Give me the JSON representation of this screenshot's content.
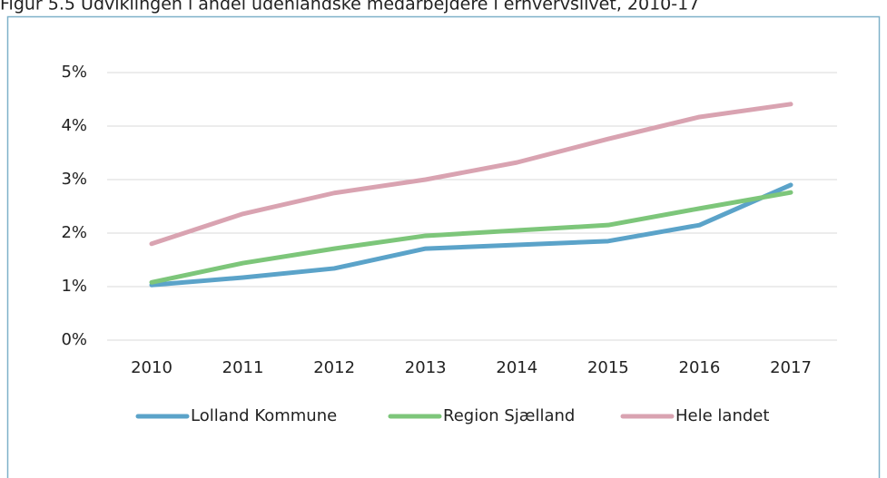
{
  "chart_data": {
    "type": "line",
    "title": "Figur 5.5 Udviklingen i andel udenlandske medarbejdere i erhvervslivet, 2010-17",
    "categories": [
      "2010",
      "2011",
      "2012",
      "2013",
      "2014",
      "2015",
      "2016",
      "2017"
    ],
    "series": [
      {
        "name": "Lolland Kommune",
        "color": "#5ba3c9",
        "values": [
          1.03,
          1.17,
          1.34,
          1.71,
          1.78,
          1.85,
          2.15,
          2.9
        ]
      },
      {
        "name": "Region Sjælland",
        "color": "#7dc67a",
        "values": [
          1.08,
          1.44,
          1.71,
          1.95,
          2.05,
          2.15,
          2.46,
          2.76
        ]
      },
      {
        "name": "Hele landet",
        "color": "#d9a3b1",
        "values": [
          1.8,
          2.36,
          2.75,
          3.0,
          3.32,
          3.76,
          4.17,
          4.41
        ]
      }
    ],
    "ylim": [
      0,
      5
    ],
    "yticks": [
      {
        "value": 0,
        "label": "0%"
      },
      {
        "value": 1,
        "label": "1%"
      },
      {
        "value": 2,
        "label": "2%"
      },
      {
        "value": 3,
        "label": "3%"
      },
      {
        "value": 4,
        "label": "4%"
      },
      {
        "value": 5,
        "label": "5%"
      }
    ],
    "grid": true,
    "legend": "bottom"
  }
}
